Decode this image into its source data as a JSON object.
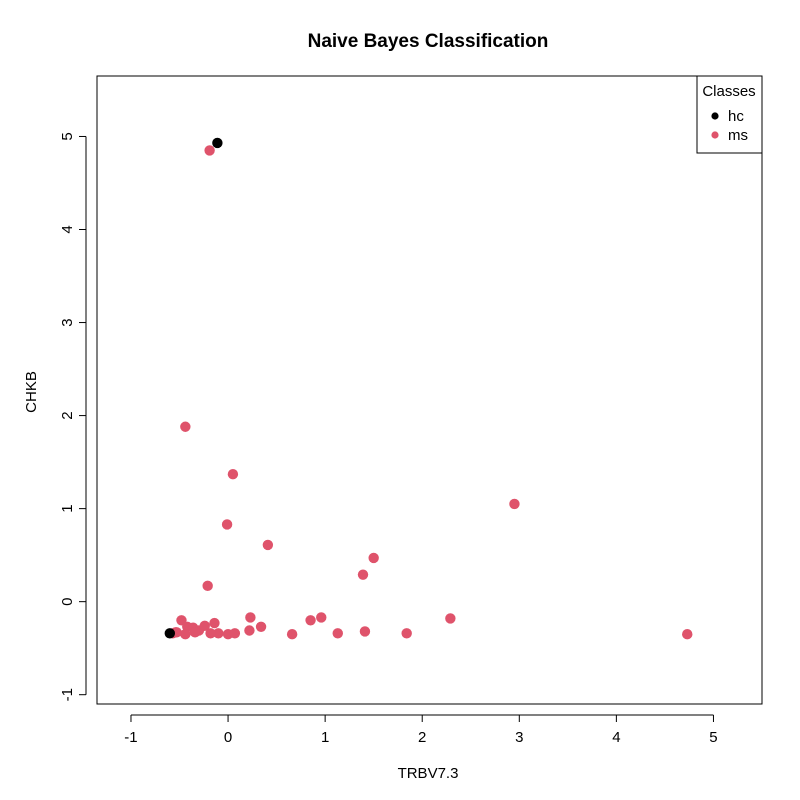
{
  "chart_data": {
    "type": "scatter",
    "title": "Naive Bayes Classification",
    "xlabel": "TRBV7.3",
    "ylabel": "CHKB",
    "xlim": [
      -1.35,
      5.5
    ],
    "ylim": [
      -1.1,
      5.65
    ],
    "x_ticks": [
      -1,
      0,
      1,
      2,
      3,
      4,
      5
    ],
    "y_ticks": [
      -1,
      0,
      1,
      2,
      3,
      4,
      5
    ],
    "x_tick_labels": [
      "-1",
      "0",
      "1",
      "2",
      "3",
      "4",
      "5"
    ],
    "y_tick_labels": [
      "-1",
      "0",
      "1",
      "2",
      "3",
      "4",
      "5"
    ],
    "grid": false,
    "legend": {
      "title": "Classes",
      "position": "top-right",
      "entries": [
        {
          "name": "hc",
          "color": "#000000"
        },
        {
          "name": "ms",
          "color": "#DF536B"
        }
      ]
    },
    "series": [
      {
        "name": "ms",
        "color": "#DF536B",
        "points": [
          [
            -0.19,
            4.85
          ],
          [
            -0.44,
            1.88
          ],
          [
            0.05,
            1.37
          ],
          [
            -0.01,
            0.83
          ],
          [
            0.41,
            0.61
          ],
          [
            1.5,
            0.47
          ],
          [
            1.39,
            0.29
          ],
          [
            2.95,
            1.05
          ],
          [
            -0.21,
            0.17
          ],
          [
            -0.48,
            -0.2
          ],
          [
            -0.42,
            -0.27
          ],
          [
            -0.36,
            -0.28
          ],
          [
            -0.3,
            -0.31
          ],
          [
            -0.24,
            -0.26
          ],
          [
            -0.14,
            -0.23
          ],
          [
            -0.1,
            -0.34
          ],
          [
            -0.54,
            -0.33
          ],
          [
            -0.44,
            -0.35
          ],
          [
            -0.34,
            -0.33
          ],
          [
            -0.18,
            -0.34
          ],
          [
            0.0,
            -0.35
          ],
          [
            0.07,
            -0.34
          ],
          [
            0.22,
            -0.31
          ],
          [
            0.23,
            -0.17
          ],
          [
            0.34,
            -0.27
          ],
          [
            0.66,
            -0.35
          ],
          [
            0.85,
            -0.2
          ],
          [
            0.96,
            -0.17
          ],
          [
            1.13,
            -0.34
          ],
          [
            1.41,
            -0.32
          ],
          [
            1.84,
            -0.34
          ],
          [
            2.29,
            -0.18
          ],
          [
            4.73,
            -0.35
          ],
          [
            -0.57,
            -0.34
          ],
          [
            -0.53,
            -0.33
          ]
        ]
      },
      {
        "name": "hc",
        "color": "#000000",
        "points": [
          [
            -0.11,
            4.93
          ],
          [
            -0.6,
            -0.34
          ]
        ]
      }
    ]
  }
}
